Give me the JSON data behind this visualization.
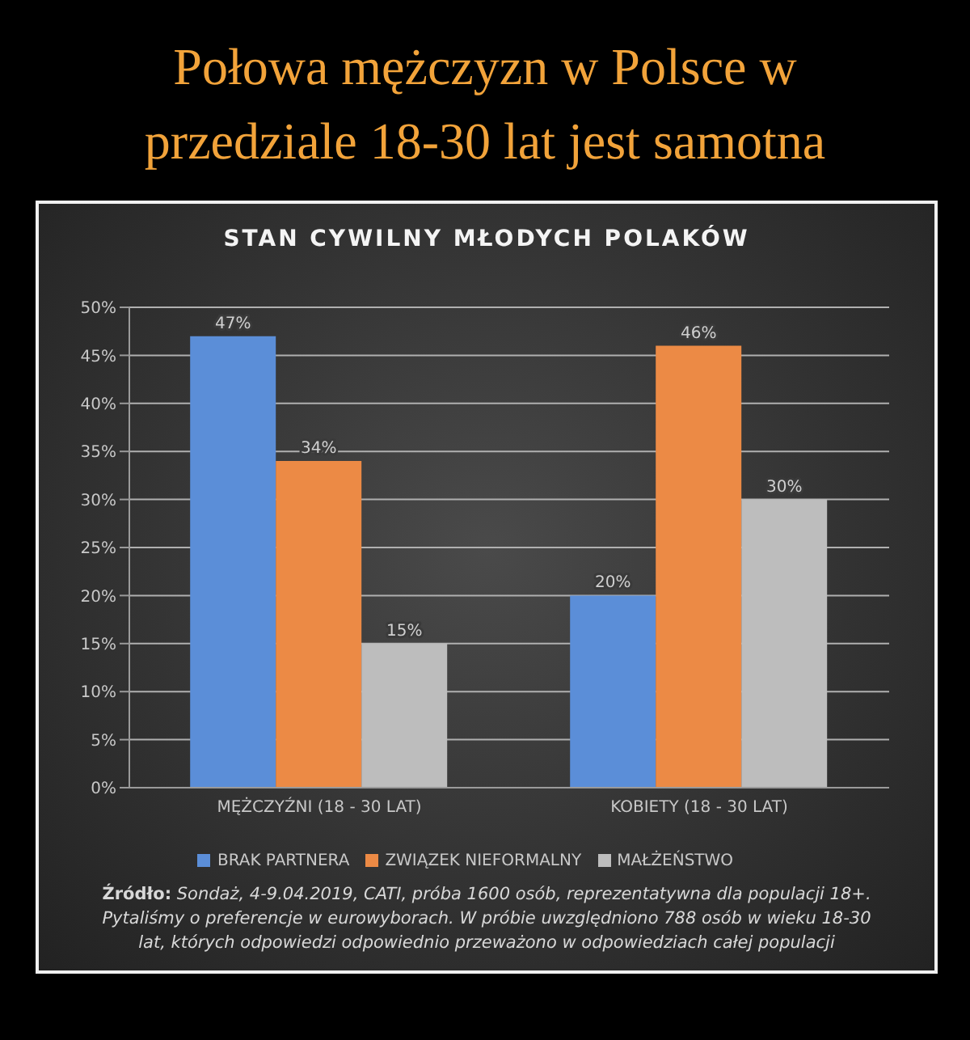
{
  "chart_data": {
    "type": "bar",
    "title": "Połowa mężczyzn w Polsce w przedziale 18-30 lat jest samotna",
    "subtitle": "STAN CYWILNY MŁODYCH POLAKÓW",
    "categories": [
      "MĘŻCZYŹNI (18 - 30 LAT)",
      "KOBIETY (18 - 30 LAT)"
    ],
    "series": [
      {
        "name": "BRAK PARTNERA",
        "color": "#5b8ed8",
        "values": [
          47,
          20
        ],
        "value_labels": [
          "47%",
          "20%"
        ]
      },
      {
        "name": "ZWIĄZEK NIEFORMALNY",
        "color": "#ec8a45",
        "values": [
          34,
          46
        ],
        "value_labels": [
          "34%",
          "46%"
        ]
      },
      {
        "name": "MAŁŻEŃSTWO",
        "color": "#bdbdbd",
        "values": [
          15,
          30
        ],
        "value_labels": [
          "15%",
          "30%"
        ]
      }
    ],
    "ylim": [
      0,
      50
    ],
    "yticks": [
      {
        "value": 0,
        "label": "0%"
      },
      {
        "value": 5,
        "label": "5%"
      },
      {
        "value": 10,
        "label": "10%"
      },
      {
        "value": 15,
        "label": "15%"
      },
      {
        "value": 20,
        "label": "20%"
      },
      {
        "value": 25,
        "label": "25%"
      },
      {
        "value": 30,
        "label": "30%"
      },
      {
        "value": 35,
        "label": "35%"
      },
      {
        "value": 40,
        "label": "40%"
      },
      {
        "value": 45,
        "label": "45%"
      },
      {
        "value": 50,
        "label": "50%"
      }
    ],
    "grid": "y",
    "legend": "bottom",
    "annotations": [
      "Źródło: Sondaż, 4-9.04.2019, CATI, próba 1600 osób, reprezentatywna dla populacji 18+. Pytaliśmy o preferencje w eurowyborach. W próbie uwzględniono 788 osób w wieku 18-30 lat, których odpowiedzi odpowiednio przeważono w odpowiedziach całej populacji"
    ]
  }
}
